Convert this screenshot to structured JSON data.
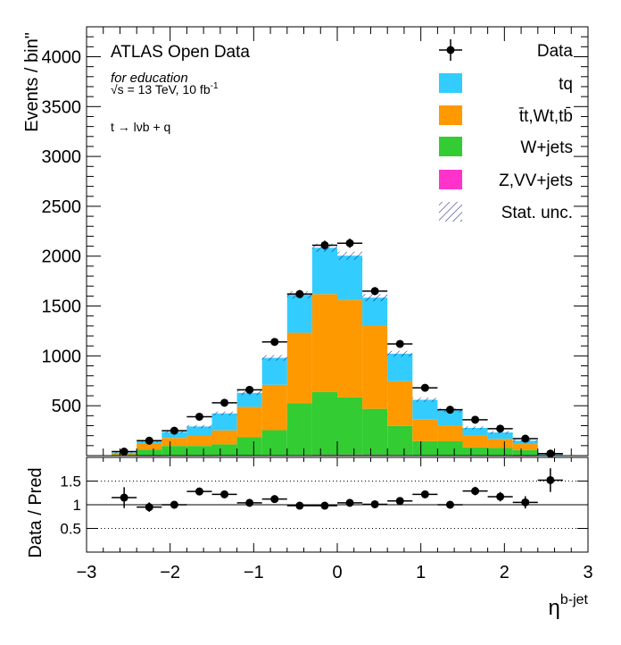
{
  "chart_data": {
    "type": "bar",
    "stacked": true,
    "bin_edges": [
      -2.7,
      -2.4,
      -2.1,
      -1.8,
      -1.5,
      -1.2,
      -0.9,
      -0.6,
      -0.3,
      0.0,
      0.3,
      0.6,
      0.9,
      1.2,
      1.5,
      1.8,
      2.1,
      2.4,
      2.7
    ],
    "series": [
      {
        "name": "Z,VV+jets",
        "color": "#ff33cc",
        "values": [
          0,
          1,
          2,
          2,
          3,
          4,
          5,
          7,
          9,
          10,
          9,
          7,
          5,
          4,
          3,
          2,
          1,
          0
        ]
      },
      {
        "name": "W+jets",
        "color": "#33cc33",
        "values": [
          12,
          60,
          95,
          95,
          110,
          180,
          250,
          520,
          630,
          575,
          460,
          290,
          140,
          140,
          80,
          75,
          55,
          5
        ]
      },
      {
        "name": "t̄t,Wt,tb̄",
        "color": "#ff9900",
        "values": [
          12,
          60,
          80,
          100,
          140,
          305,
          455,
          705,
          980,
          975,
          830,
          450,
          220,
          160,
          115,
          90,
          60,
          8
        ]
      },
      {
        "name": "tq",
        "color": "#33ccff",
        "values": [
          6,
          25,
          60,
          95,
          170,
          140,
          270,
          380,
          465,
          445,
          285,
          275,
          195,
          150,
          80,
          65,
          34,
          2
        ]
      }
    ],
    "data": {
      "name": "Data",
      "values": [
        40,
        150,
        250,
        390,
        530,
        660,
        1140,
        1620,
        2110,
        2130,
        1650,
        1120,
        680,
        460,
        360,
        270,
        170,
        20
      ]
    },
    "ratio": {
      "values": [
        1.15,
        0.95,
        1.0,
        1.28,
        1.22,
        1.04,
        1.12,
        0.98,
        0.98,
        1.04,
        1.01,
        1.08,
        1.22,
        1.0,
        1.29,
        1.17,
        1.05,
        1.52
      ],
      "errors": [
        0.22,
        0.1,
        0.07,
        0.08,
        0.07,
        0.05,
        0.05,
        0.03,
        0.03,
        0.03,
        0.03,
        0.05,
        0.06,
        0.07,
        0.09,
        0.1,
        0.13,
        0.25
      ]
    },
    "ylabel": "Events / bin\"",
    "ratio_ylabel": "Data / Pred",
    "xlabel_base": "η",
    "xlabel_sup": "b-jet",
    "xlim": [
      -3,
      3
    ],
    "ylim": [
      0,
      4300
    ],
    "ratio_ylim": [
      0,
      2
    ],
    "xticks": [
      "−3",
      "−2",
      "−1",
      "0",
      "1",
      "2",
      "3"
    ],
    "yticks": [
      "500",
      "1000",
      "1500",
      "2000",
      "2500",
      "3000",
      "3500",
      "4000"
    ],
    "ratio_yticks": [
      "0.5",
      "1",
      "1.5"
    ],
    "legend": [
      "Data",
      "tq",
      "t̄t,Wt,tb̄",
      "W+jets",
      "Z,VV+jets",
      "Stat. unc."
    ],
    "legend_position": "top-right",
    "annotations": {
      "title": "ATLAS Open Data",
      "subtitle": "for education",
      "energy": "√s = 13 TeV, 10 fb",
      "energy_sup": "-1",
      "channel": "t → lνb + q"
    }
  }
}
